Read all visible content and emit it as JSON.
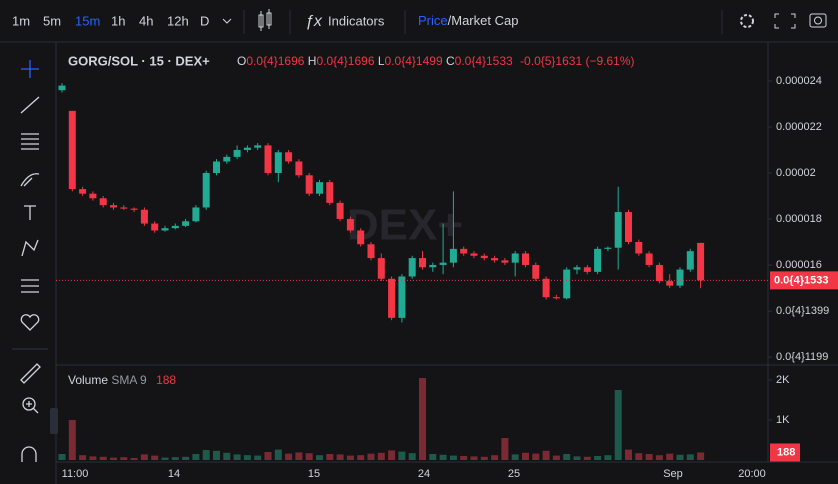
{
  "toolbar": {
    "intervals": [
      "1m",
      "5m",
      "15m",
      "1h",
      "4h",
      "12h",
      "D"
    ],
    "active_interval": 2,
    "indicators": "Indicators",
    "price": "Price",
    "market_cap": "Market Cap"
  },
  "chart_data": {
    "type": "candlestick",
    "title": "GORG/SOL · 15 · DEX+",
    "watermark": "DEX+",
    "ohlc_legend": [
      {
        "label": "O",
        "value": "0.0{4}1696"
      },
      {
        "label": "H",
        "value": "0.0{4}1696"
      },
      {
        "label": "L",
        "value": "0.0{4}1499"
      },
      {
        "label": "C",
        "value": "0.0{4}1533"
      }
    ],
    "change": "-0.0{5}1631 (−9.61%)",
    "open": [
      2.36e-05,
      2.27e-05,
      1.93e-05,
      1.91e-05,
      1.89e-05,
      1.86e-05,
      1.85e-05,
      1.845e-05,
      1.84e-05,
      1.78e-05,
      1.75e-05,
      1.76e-05,
      1.77e-05,
      1.79e-05,
      1.85e-05,
      2e-05,
      2.05e-05,
      2.07e-05,
      2.1e-05,
      2.11e-05,
      2.12e-05,
      2e-05,
      2.09e-05,
      2.05e-05,
      1.99e-05,
      1.91e-05,
      1.96e-05,
      1.87e-05,
      1.8e-05,
      1.75e-05,
      1.69e-05,
      1.63e-05,
      1.54e-05,
      1.37e-05,
      1.55e-05,
      1.63e-05,
      1.59e-05,
      1.6e-05,
      1.61e-05,
      1.67e-05,
      1.65e-05,
      1.64e-05,
      1.63e-05,
      1.62e-05,
      1.61e-05,
      1.65e-05,
      1.6e-05,
      1.54e-05,
      1.46e-05,
      1.455e-05,
      1.58e-05,
      1.59e-05,
      1.57e-05,
      1.67e-05,
      1.675e-05,
      1.83e-05,
      1.7e-05,
      1.65e-05,
      1.6e-05,
      1.53e-05,
      1.51e-05,
      1.58e-05,
      1.696e-05
    ],
    "high": [
      2.39e-05,
      2.27e-05,
      1.94e-05,
      1.92e-05,
      1.9e-05,
      1.87e-05,
      1.86e-05,
      1.85e-05,
      1.85e-05,
      1.79e-05,
      1.77e-05,
      1.78e-05,
      1.8e-05,
      1.86e-05,
      2.01e-05,
      2.06e-05,
      2.08e-05,
      2.12e-05,
      2.12e-05,
      2.13e-05,
      2.13e-05,
      2.1e-05,
      2.1e-05,
      2.06e-05,
      2e-05,
      1.97e-05,
      1.97e-05,
      1.88e-05,
      1.81e-05,
      1.76e-05,
      1.7e-05,
      1.65e-05,
      1.55e-05,
      1.56e-05,
      1.64e-05,
      1.66e-05,
      1.61e-05,
      1.78e-05,
      1.92e-05,
      1.68e-05,
      1.66e-05,
      1.65e-05,
      1.64e-05,
      1.63e-05,
      1.66e-05,
      1.66e-05,
      1.61e-05,
      1.55e-05,
      1.47e-05,
      1.59e-05,
      1.6e-05,
      1.6e-05,
      1.68e-05,
      1.68e-05,
      1.94e-05,
      1.84e-05,
      1.71e-05,
      1.66e-05,
      1.61e-05,
      1.56e-05,
      1.59e-05,
      1.67e-05,
      1.696e-05
    ],
    "low": [
      2.35e-05,
      1.92e-05,
      1.9e-05,
      1.88e-05,
      1.85e-05,
      1.84e-05,
      1.84e-05,
      1.83e-05,
      1.77e-05,
      1.74e-05,
      1.745e-05,
      1.755e-05,
      1.765e-05,
      1.785e-05,
      1.84e-05,
      1.99e-05,
      2.04e-05,
      2.06e-05,
      2.09e-05,
      2.1e-05,
      1.99e-05,
      1.96e-05,
      2.04e-05,
      1.98e-05,
      1.9e-05,
      1.9e-05,
      1.86e-05,
      1.79e-05,
      1.74e-05,
      1.68e-05,
      1.62e-05,
      1.53e-05,
      1.36e-05,
      1.35e-05,
      1.54e-05,
      1.58e-05,
      1.57e-05,
      1.56e-05,
      1.59e-05,
      1.64e-05,
      1.63e-05,
      1.62e-05,
      1.61e-05,
      1.6e-05,
      1.55e-05,
      1.59e-05,
      1.53e-05,
      1.45e-05,
      1.45e-05,
      1.45e-05,
      1.56e-05,
      1.56e-05,
      1.56e-05,
      1.66e-05,
      1.58e-05,
      1.69e-05,
      1.64e-05,
      1.59e-05,
      1.52e-05,
      1.5e-05,
      1.5e-05,
      1.57e-05,
      1.499e-05
    ],
    "close": [
      2.38e-05,
      1.93e-05,
      1.91e-05,
      1.89e-05,
      1.86e-05,
      1.85e-05,
      1.845e-05,
      1.84e-05,
      1.78e-05,
      1.75e-05,
      1.76e-05,
      1.77e-05,
      1.79e-05,
      1.85e-05,
      2e-05,
      2.05e-05,
      2.07e-05,
      2.1e-05,
      2.11e-05,
      2.12e-05,
      2e-05,
      2.09e-05,
      2.05e-05,
      1.99e-05,
      1.91e-05,
      1.96e-05,
      1.87e-05,
      1.8e-05,
      1.75e-05,
      1.69e-05,
      1.63e-05,
      1.54e-05,
      1.37e-05,
      1.55e-05,
      1.63e-05,
      1.59e-05,
      1.6e-05,
      1.61e-05,
      1.67e-05,
      1.65e-05,
      1.64e-05,
      1.63e-05,
      1.62e-05,
      1.61e-05,
      1.65e-05,
      1.6e-05,
      1.54e-05,
      1.46e-05,
      1.455e-05,
      1.58e-05,
      1.59e-05,
      1.57e-05,
      1.67e-05,
      1.675e-05,
      1.83e-05,
      1.7e-05,
      1.65e-05,
      1.6e-05,
      1.53e-05,
      1.51e-05,
      1.58e-05,
      1.66e-05,
      1.533e-05
    ],
    "volume": [
      150,
      1000,
      120,
      90,
      80,
      60,
      70,
      50,
      140,
      110,
      60,
      70,
      80,
      150,
      250,
      230,
      180,
      140,
      120,
      110,
      200,
      260,
      160,
      190,
      170,
      120,
      150,
      140,
      110,
      120,
      160,
      180,
      240,
      210,
      170,
      2050,
      150,
      130,
      110,
      100,
      90,
      80,
      120,
      550,
      140,
      180,
      160,
      230,
      110,
      150,
      90,
      80,
      100,
      120,
      1750,
      260,
      170,
      150,
      120,
      160,
      130,
      140,
      188
    ],
    "ylim": [
      1.165e-05,
      2.513e-05
    ],
    "yticks": [
      2.4e-05,
      2.2e-05,
      2e-05,
      1.8e-05,
      1.6e-05,
      {
        "value": 1.399e-05,
        "label": "0.0{4}1399"
      },
      {
        "value": 1.199e-05,
        "label": "0.0{4}1199"
      }
    ],
    "last_price": {
      "value": 1.533e-05,
      "label": "0.0{4}1533"
    },
    "volume_legend": {
      "name": "Volume",
      "indicator": "SMA 9"
    },
    "vlim": [
      0,
      2375
    ],
    "vticks": [
      {
        "value": 2000,
        "label": "2K"
      },
      {
        "value": 1000,
        "label": "1K"
      }
    ],
    "time_labels": [
      "11:00",
      "14",
      "15",
      "24",
      "25",
      "Sep",
      "20:00"
    ],
    "up_color": "#22ab94",
    "down_color": "#f23645",
    "up_volume_color": "#1d5a4c",
    "down_volume_color": "#7b2a33"
  }
}
